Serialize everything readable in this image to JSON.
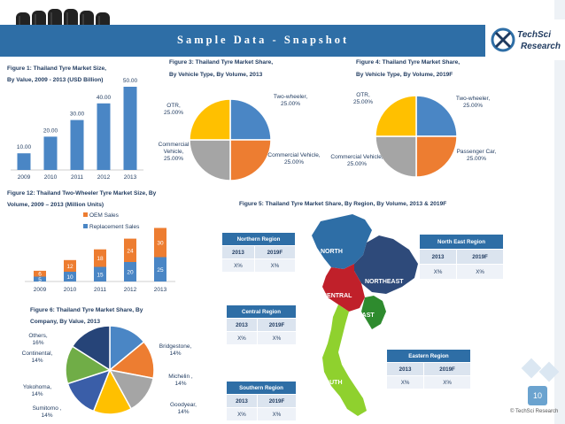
{
  "header": {
    "title": "Sample Data - Snapshot",
    "logo_text": "TechSci Research",
    "logo_line1": "TechSci",
    "logo_line2": "Research"
  },
  "fig1": {
    "caption_line1": "Figure 1: Thailand Tyre Market Size,",
    "caption_line2": "By Value, 2009 - 2013 (USD Billion)",
    "chart_data": {
      "type": "bar",
      "categories": [
        "2009",
        "2010",
        "2011",
        "2012",
        "2013"
      ],
      "values": [
        10,
        20,
        30,
        40,
        50
      ],
      "data_labels": [
        "10.00",
        "20.00",
        "30.00",
        "40.00",
        "50.00"
      ],
      "ylim": [
        0,
        50
      ],
      "color": "#4a86c5"
    }
  },
  "fig3": {
    "caption_line1": "Figure 3: Thailand Tyre Market Share,",
    "caption_line2": "By Vehicle Type, By Volume, 2013",
    "chart_data": {
      "type": "pie",
      "labels": [
        "Two-wheeler, 25.00%",
        "Commercial Vehicle, 25.00%",
        "Commercial Vehicle, 25.00%",
        "OTR, 25.00%"
      ],
      "values": [
        25,
        25,
        25,
        25
      ],
      "colors": [
        "#4a86c5",
        "#ed7d31",
        "#a5a5a5",
        "#ffc000"
      ]
    }
  },
  "fig4": {
    "caption_line1": "Figure 4: Thailand Tyre Market Share,",
    "caption_line2": "By Vehicle Type, By Volume, 2019F",
    "chart_data": {
      "type": "pie",
      "labels": [
        "Two-wheeler, 25.00%",
        "Passenger Car, 25.00%",
        "Commercial Vehicle, 25.00%",
        "OTR, 25.00%"
      ],
      "values": [
        25,
        25,
        25,
        25
      ],
      "colors": [
        "#4a86c5",
        "#ed7d31",
        "#a5a5a5",
        "#ffc000"
      ]
    }
  },
  "fig12": {
    "caption_line1": "Figure 12: Thailand Two-Wheeler Tyre Market Size, By",
    "caption_line2": "Volume, 2009 – 2013 (Million Units)",
    "chart_data": {
      "type": "bar",
      "stacked": true,
      "categories": [
        "2009",
        "2010",
        "2011",
        "2012",
        "2013"
      ],
      "series": [
        {
          "name": "Replacement Sales",
          "values": [
            5,
            10,
            15,
            20,
            25
          ],
          "color": "#4a86c5"
        },
        {
          "name": "OEM Sales",
          "values": [
            6,
            12,
            18,
            24,
            30
          ],
          "color": "#ed7d31"
        }
      ],
      "legend": [
        "OEM Sales",
        "Replacement Sales"
      ]
    }
  },
  "fig5": {
    "caption": "Figure 5: Thailand Tyre Market Share, By Region, By Volume, 2013 & 2019F",
    "map_labels": [
      "NORTH",
      "NORTHEAST",
      "CENTRAL",
      "EAST",
      "SOUTH"
    ],
    "tables": {
      "northern": {
        "title": "Northern Region",
        "y1": "2013",
        "y2": "2019F",
        "v1": "X%",
        "v2": "X%"
      },
      "northeast": {
        "title": "North East Region",
        "y1": "2013",
        "y2": "2019F",
        "v1": "X%",
        "v2": "X%"
      },
      "central": {
        "title": "Central Region",
        "y1": "2013",
        "y2": "2019F",
        "v1": "X%",
        "v2": "X%"
      },
      "eastern": {
        "title": "Eastern Region",
        "y1": "2013",
        "y2": "2019F",
        "v1": "X%",
        "v2": "X%"
      },
      "southern": {
        "title": "Southern Region",
        "y1": "2013",
        "y2": "2019F",
        "v1": "X%",
        "v2": "X%"
      }
    }
  },
  "fig6": {
    "caption_line1": "Figure 6: Thailand Tyre Market Share, By",
    "caption_line2": "Company, By Value, 2013",
    "chart_data": {
      "type": "pie",
      "labels": [
        "Bridgestone, 14%",
        "Michelin , 14%",
        "Goodyear, 14%",
        "Sumitomo , 14%",
        "Yokohoma, 14%",
        "Continental, 14%",
        "Others, 16%"
      ],
      "values": [
        14,
        14,
        14,
        14,
        14,
        14,
        16
      ],
      "colors": [
        "#4a86c5",
        "#ed7d31",
        "#a5a5a5",
        "#ffc000",
        "#3a5ea8",
        "#70ad47",
        "#264478"
      ]
    }
  },
  "footer": {
    "page": "10",
    "copyright": "© TechSci Research"
  }
}
